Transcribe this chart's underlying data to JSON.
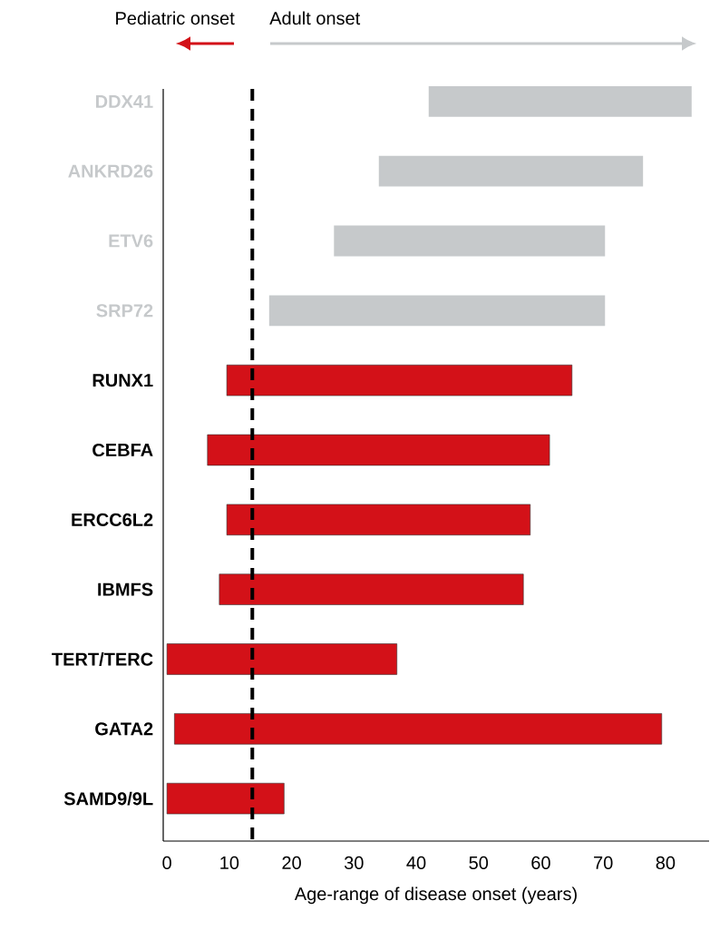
{
  "chart_data": {
    "type": "bar",
    "orientation": "horizontal",
    "xlabel": "Age-range of disease onset (years)",
    "categories": [
      "DDX41",
      "ANKRD26",
      "ETV6",
      "SRP72",
      "RUNX1",
      "CEBFA",
      "ERCC6L2",
      "IBMFS",
      "TERT/TERC",
      "GATA2",
      "SAMD9/9L"
    ],
    "base": [
      42,
      34,
      26.8,
      16.4,
      9.6,
      6.5,
      9.6,
      8.4,
      0,
      1.2,
      0
    ],
    "values": [
      42.2,
      42.4,
      43.5,
      53.9,
      55.4,
      54.9,
      48.7,
      48.8,
      36.9,
      78.2,
      18.8
    ],
    "colors": [
      "#c6c9cb",
      "#c6c9cb",
      "#c6c9cb",
      "#c6c9cb",
      "#d31118",
      "#d31118",
      "#d31118",
      "#d31118",
      "#d31118",
      "#d31118",
      "#d31118"
    ],
    "xlim": [
      -0.6,
      87
    ],
    "xticks": [
      0,
      10,
      20,
      30,
      40,
      50,
      60,
      70,
      80
    ],
    "ref_lines": [
      {
        "axis": "x",
        "value": 13.7,
        "color": "#000000",
        "line_style": "dashed"
      }
    ],
    "annotations": [
      "Pediatric onset",
      "Adult onset"
    ]
  }
}
